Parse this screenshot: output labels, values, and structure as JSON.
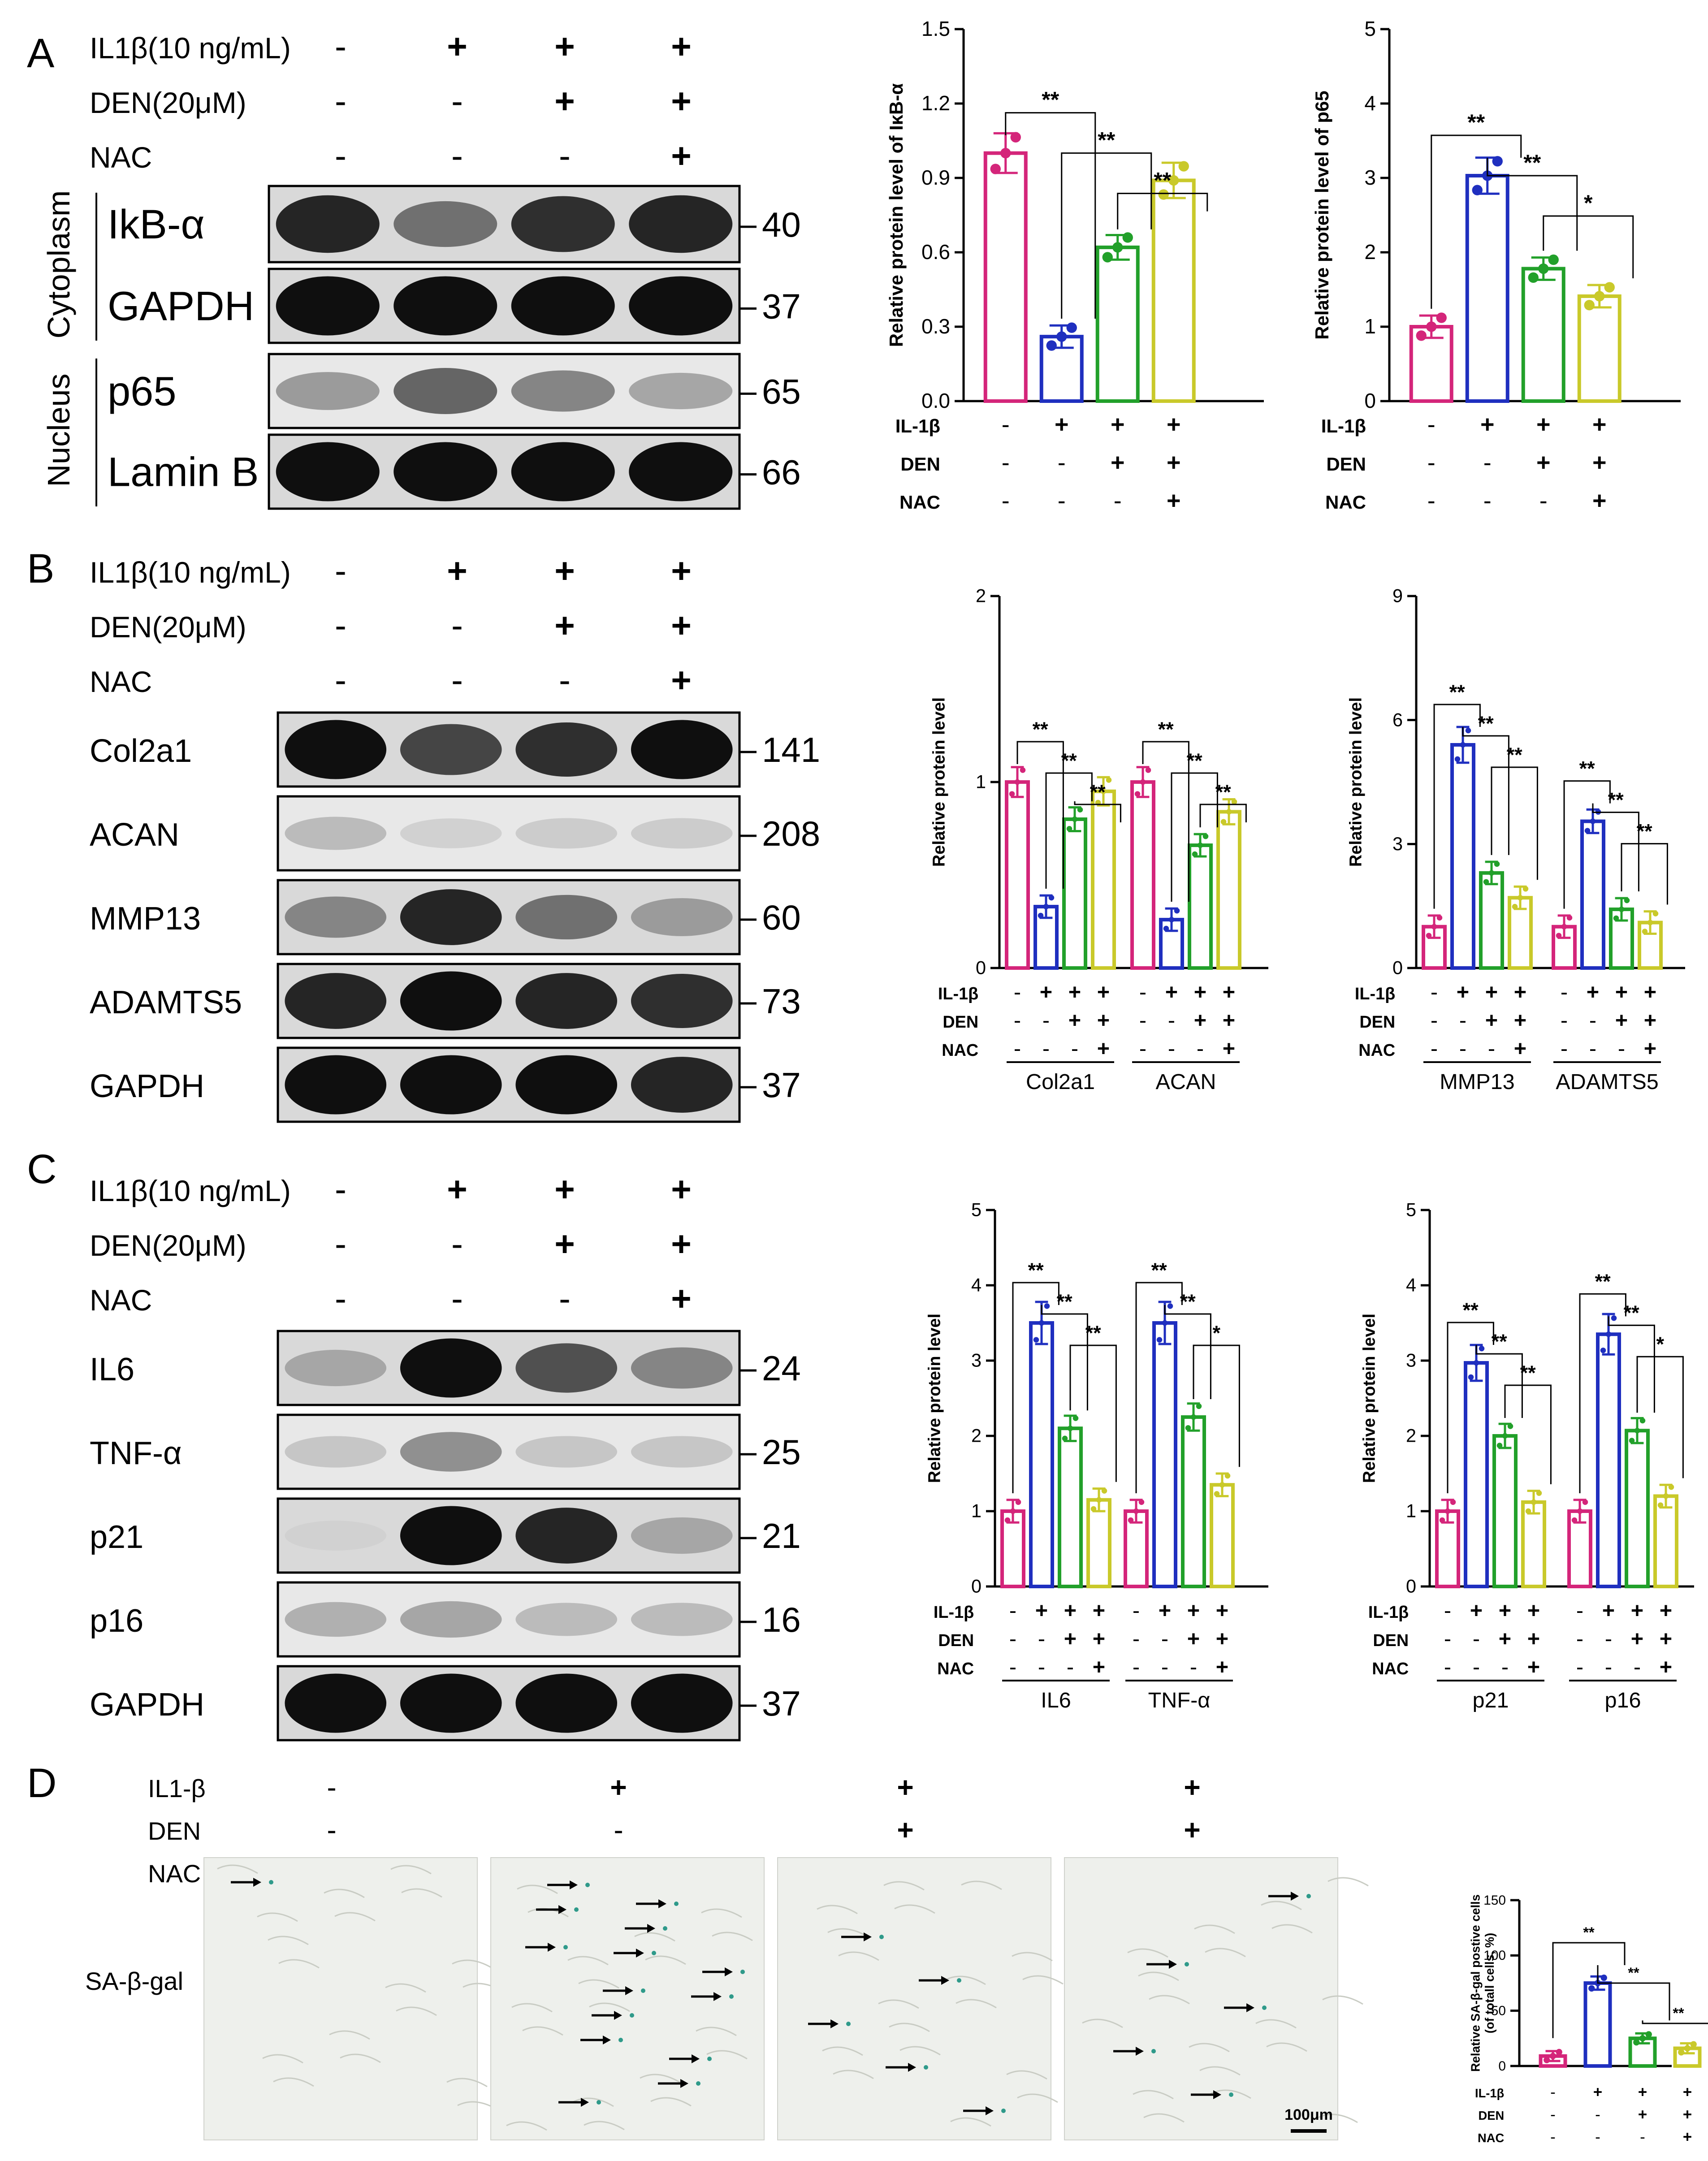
{
  "colors": {
    "ctrl": "#d4257a",
    "il1b": "#1f2fbf",
    "den": "#22a02a",
    "nac": "#c9c92a"
  },
  "panel_letters": [
    "A",
    "B",
    "C",
    "D"
  ],
  "treatments": {
    "il1b_label": "IL1β(10 ng/mL)",
    "den_label": "DEN(20μM)",
    "nac_label": "NAC",
    "il1b_signs": [
      "-",
      "+",
      "+",
      "+"
    ],
    "den_signs": [
      "-",
      "-",
      "+",
      "+"
    ],
    "nac_signs": [
      "-",
      "-",
      "-",
      "+"
    ]
  },
  "panel_d_treatments": {
    "il1b_label": "IL1-β",
    "den_label": "DEN",
    "nac_label": "NAC"
  },
  "blots": {
    "A": {
      "groups": [
        "Cytoplasm",
        "Nucleus"
      ],
      "bands": [
        {
          "name": "IkB-α",
          "kda": "40"
        },
        {
          "name": "GAPDH",
          "kda": "37"
        },
        {
          "name": "p65",
          "kda": "65"
        },
        {
          "name": "Lamin B",
          "kda": "66"
        }
      ]
    },
    "B": {
      "bands": [
        {
          "name": "Col2a1",
          "kda": "141"
        },
        {
          "name": "ACAN",
          "kda": "208"
        },
        {
          "name": "MMP13",
          "kda": "60"
        },
        {
          "name": "ADAMTS5",
          "kda": "73"
        },
        {
          "name": "GAPDH",
          "kda": "37"
        }
      ]
    },
    "C": {
      "bands": [
        {
          "name": "IL6",
          "kda": "24"
        },
        {
          "name": "TNF-α",
          "kda": "25"
        },
        {
          "name": "p21",
          "kda": "21"
        },
        {
          "name": "p16",
          "kda": "16"
        },
        {
          "name": "GAPDH",
          "kda": "37"
        }
      ]
    }
  },
  "stain_label": "SA-β-gal",
  "scale_bar": "100μm",
  "sign_rows": {
    "labels": [
      "IL-1β",
      "DEN",
      "NAC"
    ],
    "il1b": [
      "-",
      "+",
      "+",
      "+"
    ],
    "den": [
      "-",
      "-",
      "+",
      "+"
    ],
    "nac": [
      "-",
      "-",
      "-",
      "+"
    ]
  },
  "chart_data": [
    {
      "type": "bar",
      "panel": "A-left",
      "ylabel": "Relative protein level of IκB-α",
      "ylim": [
        0,
        1.5
      ],
      "yticks": [
        "0.0",
        "0.3",
        "0.6",
        "0.9",
        "1.2",
        "1.5"
      ],
      "groups": [
        {
          "label": "",
          "values": [
            1.0,
            0.26,
            0.62,
            0.89
          ]
        }
      ],
      "significance": [
        "**",
        "**",
        "**"
      ]
    },
    {
      "type": "bar",
      "panel": "A-right",
      "ylabel": "Relative protein level of p65",
      "ylim": [
        0,
        5
      ],
      "yticks": [
        "0",
        "1",
        "2",
        "3",
        "4",
        "5"
      ],
      "groups": [
        {
          "label": "",
          "values": [
            1.0,
            3.03,
            1.78,
            1.41
          ]
        }
      ],
      "significance": [
        "**",
        "**",
        "*"
      ]
    },
    {
      "type": "bar",
      "panel": "B-left",
      "ylabel": "Relative protein level",
      "ylim": [
        0,
        2
      ],
      "yticks": [
        "0",
        "1",
        "2"
      ],
      "groups": [
        {
          "label": "Col2a1",
          "values": [
            1.0,
            0.33,
            0.8,
            0.95
          ]
        },
        {
          "label": "ACAN",
          "values": [
            1.0,
            0.26,
            0.66,
            0.84
          ]
        }
      ],
      "significance": [
        "**",
        "**",
        "**"
      ]
    },
    {
      "type": "bar",
      "panel": "B-right",
      "ylabel": "Relative protein level",
      "ylim": [
        0,
        9
      ],
      "yticks": [
        "0",
        "3",
        "6",
        "9"
      ],
      "groups": [
        {
          "label": "MMP13",
          "values": [
            1.0,
            5.4,
            2.3,
            1.7
          ]
        },
        {
          "label": "ADAMTS5",
          "values": [
            1.0,
            3.55,
            1.42,
            1.1
          ]
        }
      ],
      "significance": [
        "**",
        "**",
        "**"
      ]
    },
    {
      "type": "bar",
      "panel": "C-left",
      "ylabel": "Relative protein level",
      "ylim": [
        0,
        5
      ],
      "yticks": [
        "0",
        "1",
        "2",
        "3",
        "4",
        "5"
      ],
      "groups": [
        {
          "label": "IL6",
          "values": [
            1.0,
            3.5,
            2.1,
            1.15
          ]
        },
        {
          "label": "TNF-α",
          "values": [
            1.0,
            3.5,
            2.25,
            1.35
          ]
        }
      ],
      "significance_by_group": [
        [
          "**",
          "**",
          "**"
        ],
        [
          "**",
          "**",
          "*"
        ]
      ]
    },
    {
      "type": "bar",
      "panel": "C-right",
      "ylabel": "Relative protein level",
      "ylim": [
        0,
        5
      ],
      "yticks": [
        "0",
        "1",
        "2",
        "3",
        "4",
        "5"
      ],
      "groups": [
        {
          "label": "p21",
          "values": [
            1.0,
            2.97,
            2.0,
            1.12
          ]
        },
        {
          "label": "p16",
          "values": [
            1.0,
            3.35,
            2.07,
            1.2
          ]
        }
      ],
      "significance_by_group": [
        [
          "**",
          "**",
          "**"
        ],
        [
          "**",
          "**",
          "*"
        ]
      ]
    },
    {
      "type": "bar",
      "panel": "D",
      "ylabel": "Relative  SA-β-gal postive cells",
      "ylabel2": "(of totall cells, %)",
      "ylim": [
        0,
        150
      ],
      "yticks": [
        "0",
        "50",
        "100",
        "150"
      ],
      "groups": [
        {
          "label": "",
          "values": [
            9,
            75,
            25,
            16
          ]
        }
      ],
      "significance": [
        "**",
        "**",
        "**"
      ]
    }
  ]
}
